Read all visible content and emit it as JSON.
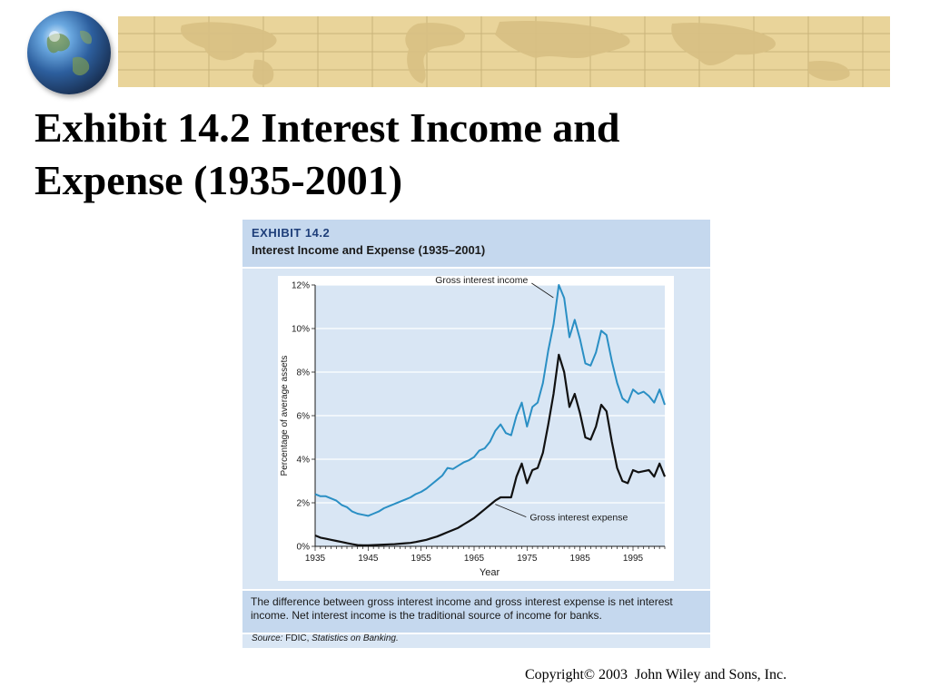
{
  "slide": {
    "title_line1": "Exhibit 14.2 Interest Income and",
    "title_line2": "Expense (1935-2001)",
    "copyright": "Copyright© 2003  John Wiley and Sons, Inc."
  },
  "exhibit": {
    "label": "EXHIBIT 14.2",
    "title": "Interest Income and Expense (1935–2001)",
    "caption": "The difference between gross interest income and gross interest expense is net interest income. Net interest income is the traditional source of income for banks.",
    "source_prefix": "Source:",
    "source_org": "FDIC,",
    "source_title": "Statistics on Banking."
  },
  "colors": {
    "income": "#2a8fc4",
    "expense": "#111111",
    "plot_bg": "#d9e6f4",
    "banner": "#e9d49a"
  },
  "icons": {
    "globe": "globe-icon",
    "banner": "world-map-banner"
  },
  "chart_data": {
    "type": "line",
    "xlabel": "Year",
    "ylabel": "Percentage of average assets",
    "xlim": [
      1935,
      2001
    ],
    "ylim": [
      0,
      12
    ],
    "xticks": [
      "1935",
      "1945",
      "1955",
      "1965",
      "1975",
      "1985",
      "1995"
    ],
    "yticks": [
      "0%",
      "2%",
      "4%",
      "6%",
      "8%",
      "10%",
      "12%"
    ],
    "grid": "horizontal",
    "series": [
      {
        "name": "Gross interest income",
        "x": [
          1935,
          1936,
          1937,
          1938,
          1939,
          1940,
          1941,
          1942,
          1943,
          1944,
          1945,
          1946,
          1947,
          1948,
          1949,
          1950,
          1951,
          1952,
          1953,
          1954,
          1955,
          1956,
          1957,
          1958,
          1959,
          1960,
          1961,
          1962,
          1963,
          1964,
          1965,
          1966,
          1967,
          1968,
          1969,
          1970,
          1971,
          1972,
          1973,
          1974,
          1975,
          1976,
          1977,
          1978,
          1979,
          1980,
          1981,
          1982,
          1983,
          1984,
          1985,
          1986,
          1987,
          1988,
          1989,
          1990,
          1991,
          1992,
          1993,
          1994,
          1995,
          1996,
          1997,
          1998,
          1999,
          2000,
          2001
        ],
        "values": [
          2.4,
          2.3,
          2.3,
          2.2,
          2.1,
          1.9,
          1.8,
          1.6,
          1.5,
          1.45,
          1.4,
          1.5,
          1.6,
          1.75,
          1.85,
          1.95,
          2.05,
          2.15,
          2.25,
          2.4,
          2.5,
          2.65,
          2.85,
          3.05,
          3.25,
          3.6,
          3.55,
          3.7,
          3.85,
          3.95,
          4.1,
          4.4,
          4.5,
          4.8,
          5.3,
          5.6,
          5.2,
          5.1,
          6.0,
          6.6,
          5.5,
          6.4,
          6.6,
          7.5,
          9.0,
          10.2,
          12.0,
          11.4,
          9.6,
          10.4,
          9.5,
          8.4,
          8.3,
          8.9,
          9.9,
          9.7,
          8.5,
          7.5,
          6.8,
          6.6,
          7.2,
          7.0,
          7.1,
          6.9,
          6.6,
          7.2,
          6.5
        ]
      },
      {
        "name": "Gross interest expense",
        "x": [
          1935,
          1936,
          1937,
          1938,
          1939,
          1940,
          1941,
          1942,
          1943,
          1944,
          1945,
          1946,
          1947,
          1948,
          1949,
          1950,
          1951,
          1952,
          1953,
          1954,
          1955,
          1956,
          1957,
          1958,
          1959,
          1960,
          1961,
          1962,
          1963,
          1964,
          1965,
          1966,
          1967,
          1968,
          1969,
          1970,
          1971,
          1972,
          1973,
          1974,
          1975,
          1976,
          1977,
          1978,
          1979,
          1980,
          1981,
          1982,
          1983,
          1984,
          1985,
          1986,
          1987,
          1988,
          1989,
          1990,
          1991,
          1992,
          1993,
          1994,
          1995,
          1996,
          1997,
          1998,
          1999,
          2000,
          2001
        ],
        "values": [
          0.5,
          0.4,
          0.35,
          0.3,
          0.25,
          0.2,
          0.15,
          0.1,
          0.06,
          0.05,
          0.05,
          0.06,
          0.07,
          0.08,
          0.09,
          0.1,
          0.12,
          0.14,
          0.16,
          0.2,
          0.25,
          0.3,
          0.38,
          0.45,
          0.55,
          0.65,
          0.75,
          0.85,
          1.0,
          1.15,
          1.3,
          1.5,
          1.7,
          1.9,
          2.1,
          2.25,
          2.25,
          2.25,
          3.2,
          3.8,
          2.9,
          3.5,
          3.6,
          4.3,
          5.6,
          7.0,
          8.8,
          8.0,
          6.4,
          7.0,
          6.1,
          5.0,
          4.9,
          5.5,
          6.5,
          6.2,
          4.8,
          3.6,
          3.0,
          2.9,
          3.5,
          3.4,
          3.45,
          3.5,
          3.2,
          3.8,
          3.2
        ]
      }
    ],
    "annotations": [
      {
        "text": "Gross interest income",
        "series": 0,
        "x": 1981
      },
      {
        "text": "Gross interest expense",
        "series": 1,
        "x": 1969
      }
    ]
  }
}
